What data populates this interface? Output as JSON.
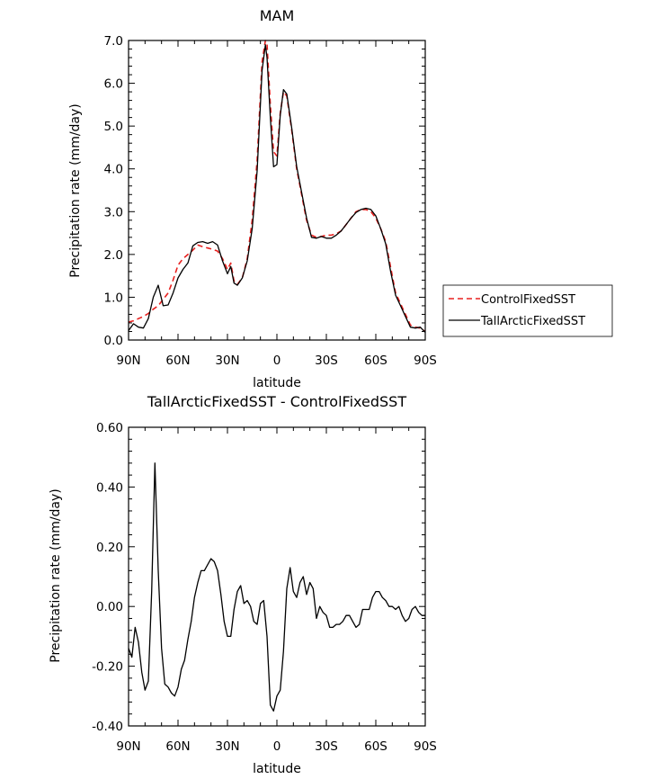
{
  "chart_data": [
    {
      "type": "line",
      "title": "MAM",
      "xlabel": "latitude",
      "ylabel": "Precipitation rate (mm/day)",
      "ylim": [
        0,
        7
      ],
      "xlim": [
        90,
        -90
      ],
      "x_ticks": [
        90,
        60,
        30,
        0,
        -30,
        -60,
        -90
      ],
      "x_tick_labels": [
        "90N",
        "60N",
        "30N",
        "0",
        "30S",
        "60S",
        "90S"
      ],
      "y_ticks": [
        0,
        1,
        2,
        3,
        4,
        5,
        6,
        7
      ],
      "y_tick_labels": [
        "0.0",
        "1.0",
        "2.0",
        "3.0",
        "4.0",
        "5.0",
        "6.0",
        "7.0"
      ],
      "grid": false,
      "legend_position": "right",
      "series": [
        {
          "name": "ControlFixedSST",
          "color": "#e8211f",
          "dash": "dashed",
          "x": [
            90,
            87,
            84,
            81,
            78,
            75,
            72,
            69,
            66,
            63,
            60,
            57,
            54,
            51,
            48,
            45,
            42,
            39,
            36,
            33,
            30,
            28,
            26,
            24,
            21,
            18,
            15,
            12,
            9,
            7,
            6,
            4,
            2,
            0,
            -2,
            -4,
            -6,
            -9,
            -12,
            -15,
            -18,
            -21,
            -24,
            -27,
            -30,
            -33,
            -36,
            -39,
            -42,
            -45,
            -48,
            -51,
            -54,
            -57,
            -60,
            -63,
            -66,
            -69,
            -72,
            -75,
            -78,
            -81,
            -84,
            -87,
            -90
          ],
          "y": [
            0.42,
            0.45,
            0.5,
            0.55,
            0.62,
            0.72,
            0.8,
            0.95,
            1.1,
            1.4,
            1.75,
            1.9,
            2.0,
            2.1,
            2.22,
            2.18,
            2.15,
            2.12,
            2.08,
            1.9,
            1.65,
            1.8,
            1.38,
            1.3,
            1.45,
            1.9,
            2.8,
            4.2,
            6.5,
            7.0,
            6.92,
            5.5,
            4.4,
            4.3,
            5.3,
            5.8,
            5.7,
            4.9,
            4.0,
            3.4,
            2.8,
            2.45,
            2.4,
            2.42,
            2.45,
            2.45,
            2.48,
            2.55,
            2.7,
            2.85,
            3.0,
            3.05,
            3.05,
            3.0,
            2.85,
            2.6,
            2.3,
            1.7,
            1.1,
            0.85,
            0.6,
            0.35,
            0.3,
            0.28,
            0.2
          ]
        },
        {
          "name": "TallArcticFixedSST",
          "color": "#000000",
          "dash": "solid",
          "x": [
            90,
            87,
            84,
            81,
            78,
            75,
            72,
            69,
            66,
            63,
            60,
            57,
            54,
            51,
            48,
            45,
            42,
            39,
            36,
            33,
            30,
            28,
            26,
            24,
            21,
            18,
            15,
            12,
            9,
            7,
            6,
            4,
            2,
            0,
            -2,
            -4,
            -6,
            -9,
            -12,
            -15,
            -18,
            -21,
            -24,
            -27,
            -30,
            -33,
            -36,
            -39,
            -42,
            -45,
            -48,
            -51,
            -54,
            -57,
            -60,
            -63,
            -66,
            -69,
            -72,
            -75,
            -78,
            -81,
            -84,
            -87,
            -90
          ],
          "y": [
            0.22,
            0.38,
            0.3,
            0.28,
            0.5,
            1.0,
            1.28,
            0.8,
            0.82,
            1.1,
            1.45,
            1.65,
            1.8,
            2.2,
            2.28,
            2.3,
            2.26,
            2.3,
            2.22,
            1.85,
            1.55,
            1.72,
            1.33,
            1.28,
            1.45,
            1.85,
            2.6,
            3.95,
            6.3,
            6.9,
            6.6,
            5.2,
            4.05,
            4.1,
            5.25,
            5.85,
            5.75,
            4.95,
            4.05,
            3.45,
            2.85,
            2.4,
            2.38,
            2.42,
            2.38,
            2.38,
            2.45,
            2.55,
            2.7,
            2.85,
            2.98,
            3.05,
            3.08,
            3.05,
            2.9,
            2.6,
            2.25,
            1.6,
            1.05,
            0.8,
            0.55,
            0.3,
            0.28,
            0.3,
            0.18
          ]
        }
      ]
    },
    {
      "type": "line",
      "title": "TallArcticFixedSST - ControlFixedSST",
      "xlabel": "latitude",
      "ylabel": "Precipitation rate (mm/day)",
      "ylim": [
        -0.4,
        0.6
      ],
      "xlim": [
        90,
        -90
      ],
      "x_ticks": [
        90,
        60,
        30,
        0,
        -30,
        -60,
        -90
      ],
      "x_tick_labels": [
        "90N",
        "60N",
        "30N",
        "0",
        "30S",
        "60S",
        "90S"
      ],
      "y_ticks": [
        -0.4,
        -0.2,
        0,
        0.2,
        0.4,
        0.6
      ],
      "y_tick_labels": [
        "-0.40",
        "-0.20",
        "0.00",
        "0.20",
        "0.40",
        "0.60"
      ],
      "grid": false,
      "series": [
        {
          "color": "#000000",
          "dash": "solid",
          "x": [
            90,
            88,
            86,
            84,
            82,
            80,
            78,
            76,
            74,
            72,
            70,
            68,
            66,
            64,
            62,
            60,
            58,
            56,
            54,
            52,
            50,
            48,
            46,
            44,
            42,
            40,
            38,
            36,
            34,
            32,
            30,
            28,
            26,
            24,
            22,
            20,
            18,
            16,
            14,
            12,
            10,
            8,
            6,
            4,
            2,
            0,
            -2,
            -4,
            -6,
            -8,
            -10,
            -12,
            -14,
            -16,
            -18,
            -20,
            -22,
            -24,
            -26,
            -28,
            -30,
            -32,
            -34,
            -36,
            -38,
            -40,
            -42,
            -44,
            -46,
            -48,
            -50,
            -52,
            -54,
            -56,
            -58,
            -60,
            -62,
            -64,
            -66,
            -68,
            -70,
            -72,
            -74,
            -76,
            -78,
            -80,
            -82,
            -84,
            -86,
            -88,
            -90
          ],
          "y": [
            -0.14,
            -0.17,
            -0.07,
            -0.12,
            -0.22,
            -0.28,
            -0.25,
            0.05,
            0.48,
            0.12,
            -0.14,
            -0.26,
            -0.27,
            -0.29,
            -0.3,
            -0.27,
            -0.21,
            -0.18,
            -0.11,
            -0.05,
            0.03,
            0.08,
            0.12,
            0.12,
            0.14,
            0.16,
            0.15,
            0.12,
            0.04,
            -0.05,
            -0.1,
            -0.1,
            -0.01,
            0.05,
            0.07,
            0.01,
            0.02,
            0.0,
            -0.05,
            -0.06,
            0.01,
            0.02,
            -0.1,
            -0.33,
            -0.35,
            -0.3,
            -0.28,
            -0.15,
            0.06,
            0.13,
            0.05,
            0.03,
            0.08,
            0.1,
            0.04,
            0.08,
            0.06,
            -0.04,
            0.0,
            -0.02,
            -0.03,
            -0.07,
            -0.07,
            -0.06,
            -0.06,
            -0.05,
            -0.03,
            -0.03,
            -0.05,
            -0.07,
            -0.06,
            -0.01,
            -0.01,
            -0.01,
            0.03,
            0.05,
            0.05,
            0.03,
            0.02,
            0.0,
            0.0,
            -0.01,
            0.0,
            -0.03,
            -0.05,
            -0.04,
            -0.01,
            0.0,
            -0.02,
            -0.03,
            -0.03
          ]
        }
      ]
    }
  ]
}
